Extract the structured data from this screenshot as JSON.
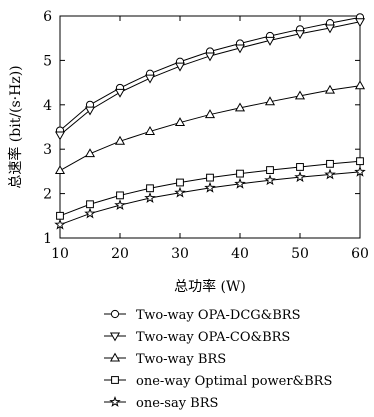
{
  "chart_data": {
    "type": "line",
    "title": "",
    "xlabel": "总功率 (W)",
    "ylabel": "总速率 (bit/(s·Hz))",
    "xlim": [
      10,
      60
    ],
    "ylim": [
      1,
      6
    ],
    "xticks": [
      10,
      20,
      30,
      40,
      50,
      60
    ],
    "yticks": [
      1,
      2,
      3,
      4,
      5,
      6
    ],
    "grid": false,
    "legend_position": "bottom",
    "x": [
      10,
      15,
      20,
      25,
      30,
      35,
      40,
      45,
      50,
      55,
      60
    ],
    "series": [
      {
        "name": "Two-way OPA-DCG&BRS",
        "marker": "circle",
        "values": [
          3.42,
          4.0,
          4.38,
          4.7,
          4.97,
          5.2,
          5.38,
          5.55,
          5.7,
          5.84,
          5.97
        ]
      },
      {
        "name": "Two-way OPA-CO&BRS",
        "marker": "triangle-down",
        "values": [
          3.32,
          3.88,
          4.28,
          4.6,
          4.87,
          5.1,
          5.28,
          5.45,
          5.6,
          5.73,
          5.87
        ]
      },
      {
        "name": "Two-way BRS",
        "marker": "triangle-up",
        "values": [
          2.52,
          2.9,
          3.18,
          3.4,
          3.6,
          3.78,
          3.93,
          4.07,
          4.2,
          4.33,
          4.43
        ]
      },
      {
        "name": "one-way Optimal power&BRS",
        "marker": "square",
        "values": [
          1.5,
          1.76,
          1.96,
          2.12,
          2.25,
          2.36,
          2.45,
          2.53,
          2.6,
          2.67,
          2.73
        ]
      },
      {
        "name": "one-say BRS",
        "marker": "star",
        "values": [
          1.3,
          1.55,
          1.74,
          1.9,
          2.02,
          2.13,
          2.22,
          2.3,
          2.37,
          2.43,
          2.49
        ]
      }
    ]
  }
}
